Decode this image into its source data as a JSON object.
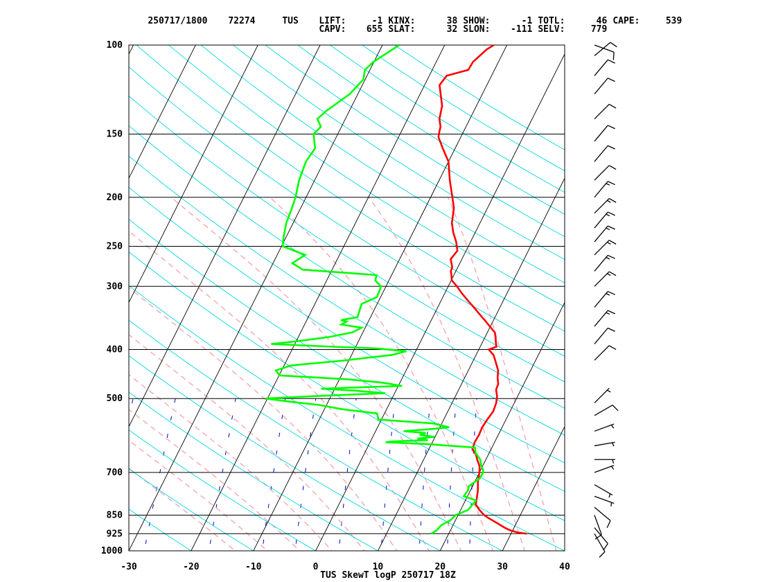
{
  "header": {
    "line1": [
      {
        "id": "datetime",
        "text": "250717/1800"
      },
      {
        "id": "station-num",
        "text": "72274"
      },
      {
        "id": "station",
        "text": "TUS"
      },
      {
        "id": "lift-label",
        "text": "LIFT:"
      },
      {
        "id": "lift-value",
        "text": "-1"
      },
      {
        "id": "kinx-label",
        "text": "KINX:"
      },
      {
        "id": "kinx-value",
        "text": "38"
      },
      {
        "id": "show-label",
        "text": "SHOW:"
      },
      {
        "id": "show-value",
        "text": "-1"
      },
      {
        "id": "totl-label",
        "text": "TOTL:"
      },
      {
        "id": "totl-value",
        "text": "46"
      },
      {
        "id": "cape-label",
        "text": "CAPE:"
      },
      {
        "id": "cape-value",
        "text": "539"
      }
    ],
    "line2": [
      {
        "id": "capv-label",
        "text": "CAPV:"
      },
      {
        "id": "capv-value",
        "text": "655"
      },
      {
        "id": "slat-label",
        "text": "SLAT:"
      },
      {
        "id": "slat-value",
        "text": "32"
      },
      {
        "id": "slon-label",
        "text": "SLON:"
      },
      {
        "id": "slon-value",
        "text": "-111"
      },
      {
        "id": "selv-label",
        "text": "SELV:"
      },
      {
        "id": "selv-value",
        "text": "779"
      }
    ]
  },
  "footer_title": "TUS SkewT logP 250717 18Z",
  "colors": {
    "background": "#ffffff",
    "temperature": "#ff0000",
    "dewpoint": "#00ff00",
    "isotherm": "#000000",
    "dry_adiabat": "#00d8e0",
    "moist_adiabat": "#f4a0b0",
    "mixing_ratio": "#0000c8",
    "isobar": "#000000",
    "wind_barb": "#000000"
  },
  "chart_data": {
    "type": "skewt",
    "xlabel": "",
    "ylabel": "",
    "xlim": [
      -30,
      40
    ],
    "ylim": [
      1000,
      100
    ],
    "x_ticks": [
      -30,
      -20,
      -10,
      0,
      10,
      20,
      30,
      40
    ],
    "x_tick_labels": [
      "-30",
      "-20",
      "-10",
      "0",
      "10",
      "20",
      "30",
      "40"
    ],
    "pressure_levels": [
      1000,
      925,
      850,
      700,
      500,
      400,
      300,
      250,
      200,
      150,
      100
    ],
    "pressure_labels": [
      "1000",
      "925",
      "850",
      "700",
      "500",
      "400",
      "300",
      "250",
      "200",
      "150",
      "100"
    ],
    "series": [
      {
        "id": "temperature",
        "points": [
          [
            925,
            32.5
          ],
          [
            920,
            31
          ],
          [
            910,
            29.5
          ],
          [
            900,
            28.5
          ],
          [
            880,
            26.8
          ],
          [
            860,
            25
          ],
          [
            850,
            24.2
          ],
          [
            830,
            23
          ],
          [
            810,
            22
          ],
          [
            790,
            21.7
          ],
          [
            760,
            21.2
          ],
          [
            730,
            20.5
          ],
          [
            700,
            20
          ],
          [
            680,
            19.5
          ],
          [
            660,
            18.6
          ],
          [
            645,
            18
          ],
          [
            630,
            17
          ],
          [
            610,
            16.8
          ],
          [
            590,
            16.9
          ],
          [
            570,
            16.8
          ],
          [
            550,
            17
          ],
          [
            530,
            17.3
          ],
          [
            510,
            17.1
          ],
          [
            495,
            16.7
          ],
          [
            480,
            16
          ],
          [
            468,
            15.9
          ],
          [
            455,
            15.3
          ],
          [
            440,
            14.8
          ],
          [
            420,
            13.5
          ],
          [
            410,
            12.8
          ],
          [
            400,
            11.6
          ],
          [
            395,
            12.6
          ],
          [
            388,
            12.2
          ],
          [
            380,
            11.8
          ],
          [
            370,
            11.2
          ],
          [
            360,
            9.9
          ],
          [
            350,
            8.6
          ],
          [
            340,
            7.2
          ],
          [
            330,
            5.8
          ],
          [
            320,
            4.3
          ],
          [
            310,
            2.8
          ],
          [
            300,
            1.4
          ],
          [
            292,
            0.1
          ],
          [
            285,
            -0.4
          ],
          [
            280,
            -0.8
          ],
          [
            275,
            -0.9
          ],
          [
            265,
            -1.8
          ],
          [
            255,
            -1.4
          ],
          [
            245,
            -2.3
          ],
          [
            235,
            -3.5
          ],
          [
            225,
            -4.5
          ],
          [
            210,
            -5.4
          ],
          [
            200,
            -6.5
          ],
          [
            185,
            -8.3
          ],
          [
            170,
            -10
          ],
          [
            160,
            -12
          ],
          [
            152,
            -13.6
          ],
          [
            148,
            -13.9
          ],
          [
            145,
            -14.1
          ],
          [
            140,
            -14.9
          ],
          [
            132,
            -15.5
          ],
          [
            120,
            -17.6
          ],
          [
            115,
            -17.2
          ],
          [
            112,
            -14.2
          ],
          [
            108,
            -14.1
          ],
          [
            102,
            -12.9
          ],
          [
            100,
            -12.1
          ]
        ]
      },
      {
        "id": "dewpoint",
        "points": [
          [
            925,
            17.2
          ],
          [
            910,
            17.8
          ],
          [
            890,
            18.1
          ],
          [
            870,
            19.2
          ],
          [
            850,
            19.6
          ],
          [
            830,
            21.2
          ],
          [
            815,
            21.4
          ],
          [
            795,
            21.7
          ],
          [
            780,
            19.4
          ],
          [
            760,
            19.6
          ],
          [
            745,
            19.4
          ],
          [
            720,
            20.5
          ],
          [
            700,
            20.6
          ],
          [
            690,
            20.3
          ],
          [
            675,
            19.6
          ],
          [
            660,
            19.1
          ],
          [
            640,
            17.8
          ],
          [
            625,
            17.3
          ],
          [
            615,
            9.3
          ],
          [
            610,
            2.5
          ],
          [
            608,
            3.5
          ],
          [
            604,
            9.1
          ],
          [
            600,
            7.3
          ],
          [
            595,
            9.9
          ],
          [
            590,
            7.4
          ],
          [
            585,
            8.2
          ],
          [
            580,
            4.5
          ],
          [
            575,
            8.4
          ],
          [
            570,
            11.5
          ],
          [
            560,
            8.7
          ],
          [
            550,
            -0.5
          ],
          [
            535,
            -1.2
          ],
          [
            525,
            -7.1
          ],
          [
            515,
            -11.1
          ],
          [
            508,
            -15.6
          ],
          [
            500,
            -20.3
          ],
          [
            494,
            -11.8
          ],
          [
            488,
            -1.5
          ],
          [
            482,
            -6.9
          ],
          [
            478,
            -12.2
          ],
          [
            472,
            0.6
          ],
          [
            465,
            -2.9
          ],
          [
            458,
            -8.7
          ],
          [
            450,
            -19.9
          ],
          [
            440,
            -20.9
          ],
          [
            430,
            -18.8
          ],
          [
            420,
            -10.5
          ],
          [
            410,
            -3.5
          ],
          [
            403,
            -1.5
          ],
          [
            398,
            -6.4
          ],
          [
            395,
            -13.5
          ],
          [
            390,
            -23.8
          ],
          [
            385,
            -19.8
          ],
          [
            378,
            -15.2
          ],
          [
            370,
            -11.7
          ],
          [
            362,
            -10.6
          ],
          [
            357,
            -14.1
          ],
          [
            352,
            -13.5
          ],
          [
            350,
            -14.5
          ],
          [
            345,
            -12.1
          ],
          [
            335,
            -12.3
          ],
          [
            325,
            -12.5
          ],
          [
            315,
            -10.6
          ],
          [
            305,
            -10.7
          ],
          [
            300,
            -10.8
          ],
          [
            292,
            -12.2
          ],
          [
            285,
            -12.4
          ],
          [
            278,
            -24.7
          ],
          [
            270,
            -26.9
          ],
          [
            260,
            -25.5
          ],
          [
            250,
            -29.8
          ],
          [
            240,
            -30.4
          ],
          [
            225,
            -31.1
          ],
          [
            210,
            -31.4
          ],
          [
            200,
            -31.7
          ],
          [
            185,
            -32.5
          ],
          [
            170,
            -32.9
          ],
          [
            160,
            -32.5
          ],
          [
            150,
            -33.9
          ],
          [
            145,
            -33.3
          ],
          [
            140,
            -34.5
          ],
          [
            135,
            -33.7
          ],
          [
            125,
            -31.3
          ],
          [
            117,
            -30.3
          ],
          [
            112,
            -30.8
          ],
          [
            108,
            -30.1
          ],
          [
            100,
            -27.3
          ]
        ]
      }
    ],
    "wind_barbs": [
      {
        "p": 925,
        "dir": 150,
        "spd": 10
      },
      {
        "p": 900,
        "dir": 140,
        "spd": 10
      },
      {
        "p": 850,
        "dir": 160,
        "spd": 10
      },
      {
        "p": 820,
        "dir": 130,
        "spd": 10
      },
      {
        "p": 780,
        "dir": 110,
        "spd": 5
      },
      {
        "p": 740,
        "dir": 120,
        "spd": 5
      },
      {
        "p": 700,
        "dir": 70,
        "spd": 5
      },
      {
        "p": 660,
        "dir": 90,
        "spd": 5
      },
      {
        "p": 620,
        "dir": 80,
        "spd": 5
      },
      {
        "p": 580,
        "dir": 70,
        "spd": 5
      },
      {
        "p": 540,
        "dir": 60,
        "spd": 10
      },
      {
        "p": 510,
        "dir": 45,
        "spd": 5
      },
      {
        "p": 420,
        "dir": 45,
        "spd": 10
      },
      {
        "p": 390,
        "dir": 40,
        "spd": 10
      },
      {
        "p": 360,
        "dir": 40,
        "spd": 15
      },
      {
        "p": 330,
        "dir": 40,
        "spd": 15
      },
      {
        "p": 300,
        "dir": 45,
        "spd": 15
      },
      {
        "p": 280,
        "dir": 40,
        "spd": 15
      },
      {
        "p": 260,
        "dir": 45,
        "spd": 15
      },
      {
        "p": 245,
        "dir": 40,
        "spd": 15
      },
      {
        "p": 230,
        "dir": 40,
        "spd": 15
      },
      {
        "p": 215,
        "dir": 45,
        "spd": 15
      },
      {
        "p": 200,
        "dir": 40,
        "spd": 15
      },
      {
        "p": 185,
        "dir": 45,
        "spd": 10
      },
      {
        "p": 170,
        "dir": 40,
        "spd": 10
      },
      {
        "p": 155,
        "dir": 40,
        "spd": 10
      },
      {
        "p": 140,
        "dir": 45,
        "spd": 10
      },
      {
        "p": 125,
        "dir": 40,
        "spd": 10
      },
      {
        "p": 115,
        "dir": 40,
        "spd": 10
      },
      {
        "p": 105,
        "dir": 50,
        "spd": 10
      },
      {
        "p": 100,
        "dir": 110,
        "spd": 10
      }
    ]
  }
}
